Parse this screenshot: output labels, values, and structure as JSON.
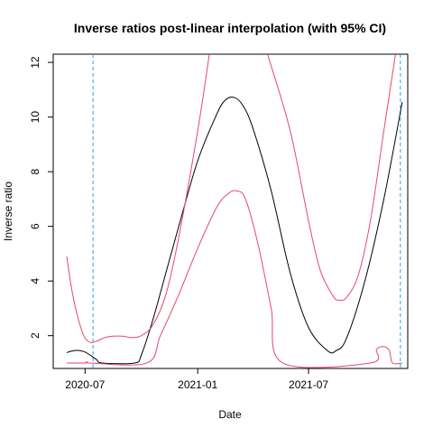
{
  "chart_data": {
    "type": "line",
    "title": "Inverse ratios post-linear interpolation (with 95% CI)",
    "xlabel": "Date",
    "ylabel": "Inverse ratio",
    "x_tick_labels": [
      "2020-07",
      "2021-01",
      "2021-07"
    ],
    "x_tick_dates": [
      "2020-07-01",
      "2021-01-01",
      "2021-07-01"
    ],
    "xlim": [
      "2020-05-10",
      "2021-12-10"
    ],
    "ylim": [
      0.8,
      12.3
    ],
    "y_ticks": [
      2,
      4,
      6,
      8,
      10,
      12
    ],
    "grid": false,
    "legend": "none",
    "vlines": [
      {
        "x": "2020-07-14",
        "color": "#2a9df4",
        "style": "dashed"
      },
      {
        "x": "2021-11-28",
        "color": "#2a9df4",
        "style": "dashed"
      }
    ],
    "series": [
      {
        "color": "#000000",
        "points": [
          [
            "2020-06-01",
            1.38
          ],
          [
            "2020-06-10",
            1.44
          ],
          [
            "2020-06-20",
            1.46
          ],
          [
            "2020-06-30",
            1.41
          ],
          [
            "2020-07-10",
            1.28
          ],
          [
            "2020-07-20",
            1.12
          ],
          [
            "2020-07-29",
            1.0
          ],
          [
            "2020-09-20",
            1.0
          ],
          [
            "2020-10-01",
            1.3
          ],
          [
            "2020-10-20",
            2.6
          ],
          [
            "2020-11-10",
            4.3
          ],
          [
            "2020-12-01",
            6.0
          ],
          [
            "2021-01-01",
            8.4
          ],
          [
            "2021-02-01",
            10.1
          ],
          [
            "2021-02-15",
            10.62
          ],
          [
            "2021-03-01",
            10.72
          ],
          [
            "2021-03-15",
            10.45
          ],
          [
            "2021-04-01",
            9.6
          ],
          [
            "2021-05-01",
            7.3
          ],
          [
            "2021-06-01",
            4.3
          ],
          [
            "2021-07-01",
            2.3
          ],
          [
            "2021-08-01",
            1.45
          ],
          [
            "2021-08-15",
            1.45
          ],
          [
            "2021-09-01",
            1.9
          ],
          [
            "2021-10-01",
            4.0
          ],
          [
            "2021-11-01",
            7.0
          ],
          [
            "2021-12-01",
            10.55
          ]
        ]
      },
      {
        "color": "#e8476a",
        "points": [
          [
            "2020-06-01",
            4.9
          ],
          [
            "2020-06-10",
            3.6
          ],
          [
            "2020-06-20",
            2.6
          ],
          [
            "2020-06-30",
            1.95
          ],
          [
            "2020-07-10",
            1.75
          ],
          [
            "2020-07-20",
            1.8
          ],
          [
            "2020-08-01",
            1.92
          ],
          [
            "2020-08-15",
            1.98
          ],
          [
            "2020-09-01",
            1.98
          ],
          [
            "2020-09-15",
            1.93
          ],
          [
            "2020-10-01",
            2.0
          ],
          [
            "2020-10-20",
            2.4
          ],
          [
            "2020-11-10",
            3.5
          ],
          [
            "2020-12-01",
            5.6
          ],
          [
            "2021-01-01",
            9.5
          ],
          [
            "2021-01-20",
            12.3
          ]
        ]
      },
      {
        "color": "#e8476a",
        "points": [
          [
            "2021-04-25",
            12.3
          ],
          [
            "2021-06-01",
            9.5
          ],
          [
            "2021-07-01",
            6.2
          ],
          [
            "2021-07-20",
            4.4
          ],
          [
            "2021-08-10",
            3.45
          ],
          [
            "2021-08-20",
            3.3
          ],
          [
            "2021-09-01",
            3.4
          ],
          [
            "2021-09-20",
            4.2
          ],
          [
            "2021-10-10",
            6.2
          ],
          [
            "2021-11-01",
            9.5
          ],
          [
            "2021-11-20",
            12.3
          ]
        ]
      },
      {
        "color": "#e8476a",
        "points": [
          [
            "2020-06-01",
            1.0
          ],
          [
            "2020-07-01",
            1.0
          ],
          [
            "2020-07-05",
            1.04
          ],
          [
            "2020-07-10",
            1.0
          ],
          [
            "2020-10-10",
            1.0
          ],
          [
            "2020-11-01",
            2.0
          ],
          [
            "2020-12-01",
            3.5
          ],
          [
            "2021-01-01",
            5.2
          ],
          [
            "2021-02-01",
            6.7
          ],
          [
            "2021-02-20",
            7.2
          ],
          [
            "2021-03-05",
            7.3
          ],
          [
            "2021-03-20",
            7.0
          ],
          [
            "2021-04-10",
            5.3
          ],
          [
            "2021-05-01",
            3.0
          ],
          [
            "2021-05-20",
            1.0
          ],
          [
            "2021-10-10",
            1.0
          ],
          [
            "2021-10-20",
            1.5
          ],
          [
            "2021-11-01",
            1.6
          ],
          [
            "2021-11-10",
            1.45
          ],
          [
            "2021-11-15",
            1.0
          ],
          [
            "2021-12-01",
            1.0
          ]
        ]
      }
    ]
  }
}
